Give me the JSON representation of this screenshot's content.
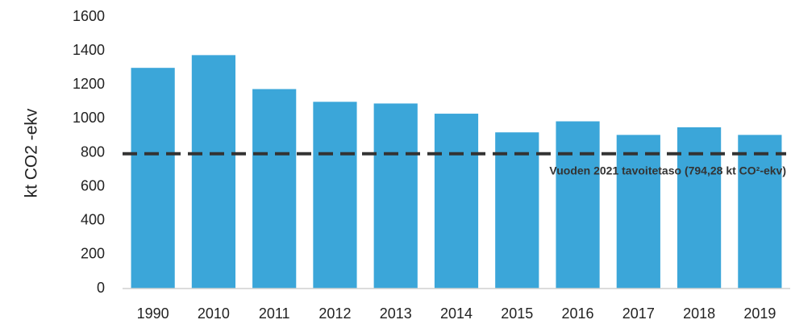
{
  "chart_data": {
    "type": "bar",
    "y_axis_label": "kt CO2 -ekv",
    "categories": [
      "1990",
      "2010",
      "2011",
      "2012",
      "2013",
      "2014",
      "2015",
      "2016",
      "2017",
      "2018",
      "2019"
    ],
    "values": [
      1300,
      1375,
      1175,
      1100,
      1090,
      1030,
      920,
      985,
      905,
      950,
      905
    ],
    "color": "#3ba6d9",
    "ylim": [
      0,
      1600
    ],
    "yticks": [
      0,
      200,
      400,
      600,
      800,
      1000,
      1200,
      1400,
      1600
    ],
    "grid": false,
    "reference_line": {
      "value": 794.28,
      "label": "Vuoden 2021 tavoitetaso (794,28 kt CO²-ekv)",
      "color": "#333333"
    }
  }
}
